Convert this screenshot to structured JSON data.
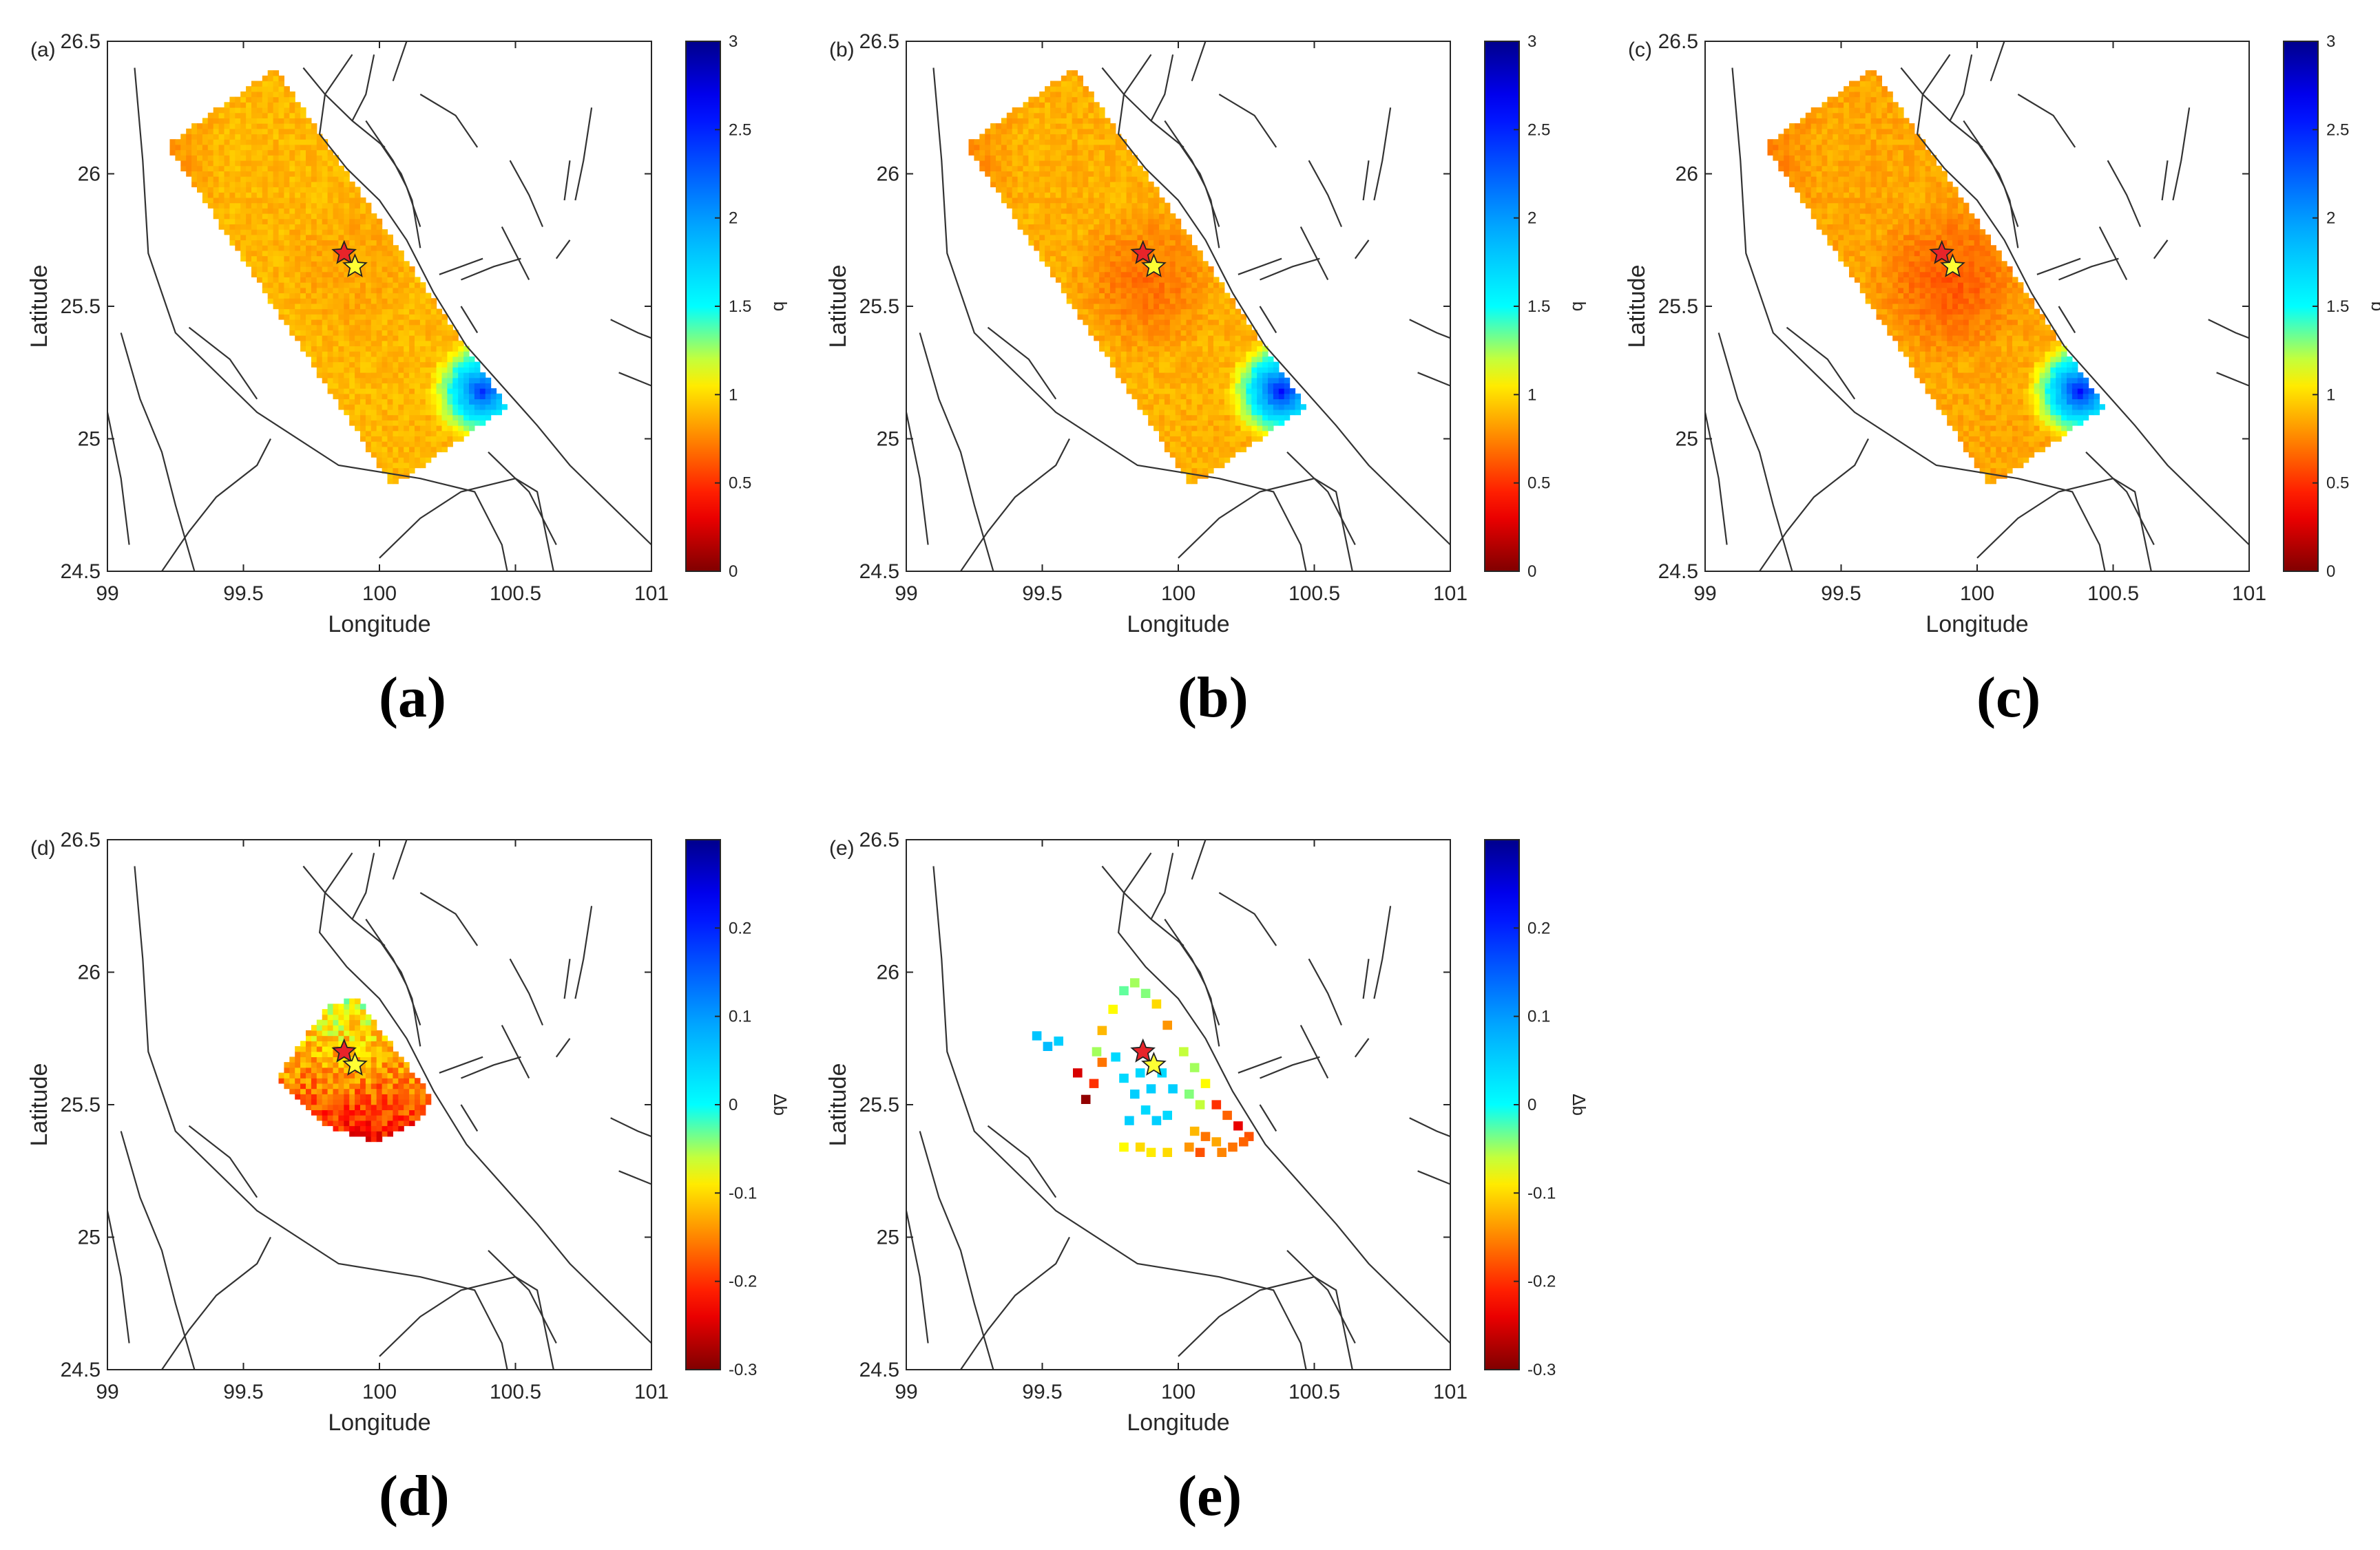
{
  "figure": {
    "captions": [
      "(a)",
      "(b)",
      "(c)",
      "(d)",
      "(e)"
    ]
  },
  "chart_data": [
    {
      "type": "heatmap",
      "panel_label": "(a)",
      "xlabel": "Longitude",
      "ylabel": "Latitude",
      "xlim": [
        99,
        101
      ],
      "ylim": [
        24.5,
        26.5
      ],
      "xticks": [
        "99",
        "99.5",
        "100",
        "100.5",
        "101"
      ],
      "yticks": [
        "24.5",
        "25",
        "25.5",
        "26",
        "26.5"
      ],
      "colorbar": {
        "label": "b",
        "range": [
          0,
          3
        ],
        "ticks": [
          "0",
          "0.5",
          "1",
          "1.5",
          "2",
          "2.5",
          "3"
        ]
      },
      "grid": false,
      "region_corners": [
        [
          99.22,
          26.11
        ],
        [
          99.62,
          26.4
        ],
        [
          100.47,
          25.12
        ],
        [
          100.05,
          24.82
        ]
      ],
      "field": {
        "base": 0.9,
        "low": {
          "center": [
            99.88,
            25.65
          ],
          "radius": 0.28,
          "value": 0.82
        },
        "high": {
          "center": [
            100.38,
            25.18
          ],
          "radius": 0.22,
          "value": 2.45
        }
      },
      "events": [
        {
          "name": "red-star",
          "lon": 99.87,
          "lat": 25.7,
          "color": "#e8242a"
        },
        {
          "name": "yellow-star",
          "lon": 99.91,
          "lat": 25.65,
          "color": "#ffff33"
        }
      ]
    },
    {
      "type": "heatmap",
      "panel_label": "(b)",
      "xlabel": "Longitude",
      "ylabel": "Latitude",
      "xlim": [
        99,
        101
      ],
      "ylim": [
        24.5,
        26.5
      ],
      "xticks": [
        "99",
        "99.5",
        "100",
        "100.5",
        "101"
      ],
      "yticks": [
        "24.5",
        "25",
        "25.5",
        "26",
        "26.5"
      ],
      "colorbar": {
        "label": "b",
        "range": [
          0,
          3
        ],
        "ticks": [
          "0",
          "0.5",
          "1",
          "1.5",
          "2",
          "2.5",
          "3"
        ]
      },
      "grid": false,
      "region_corners": [
        [
          99.22,
          26.11
        ],
        [
          99.62,
          26.4
        ],
        [
          100.47,
          25.12
        ],
        [
          100.05,
          24.82
        ]
      ],
      "field": {
        "base": 0.88,
        "low": {
          "center": [
            99.88,
            25.6
          ],
          "radius": 0.3,
          "value": 0.65
        },
        "high": {
          "center": [
            100.38,
            25.18
          ],
          "radius": 0.22,
          "value": 2.6
        }
      },
      "events": [
        {
          "name": "red-star",
          "lon": 99.87,
          "lat": 25.7,
          "color": "#e8242a"
        },
        {
          "name": "yellow-star",
          "lon": 99.91,
          "lat": 25.65,
          "color": "#ffff33"
        }
      ]
    },
    {
      "type": "heatmap",
      "panel_label": "(c)",
      "xlabel": "Longitude",
      "ylabel": "Latitude",
      "xlim": [
        99,
        101
      ],
      "ylim": [
        24.5,
        26.5
      ],
      "xticks": [
        "99",
        "99.5",
        "100",
        "100.5",
        "101"
      ],
      "yticks": [
        "24.5",
        "25",
        "25.5",
        "26",
        "26.5"
      ],
      "colorbar": {
        "label": "b",
        "range": [
          0,
          3
        ],
        "ticks": [
          "0",
          "0.5",
          "1",
          "1.5",
          "2",
          "2.5",
          "3"
        ]
      },
      "grid": false,
      "region_corners": [
        [
          99.22,
          26.11
        ],
        [
          99.62,
          26.4
        ],
        [
          100.47,
          25.12
        ],
        [
          100.05,
          24.82
        ]
      ],
      "field": {
        "base": 0.85,
        "low": {
          "center": [
            99.9,
            25.6
          ],
          "radius": 0.32,
          "value": 0.58
        },
        "high": {
          "center": [
            100.38,
            25.18
          ],
          "radius": 0.22,
          "value": 2.6
        }
      },
      "events": [
        {
          "name": "red-star",
          "lon": 99.87,
          "lat": 25.7,
          "color": "#e8242a"
        },
        {
          "name": "yellow-star",
          "lon": 99.91,
          "lat": 25.65,
          "color": "#ffff33"
        }
      ]
    },
    {
      "type": "heatmap",
      "panel_label": "(d)",
      "xlabel": "Longitude",
      "ylabel": "Latitude",
      "xlim": [
        99,
        101
      ],
      "ylim": [
        24.5,
        26.5
      ],
      "xticks": [
        "99",
        "99.5",
        "100",
        "100.5",
        "101"
      ],
      "yticks": [
        "24.5",
        "25",
        "25.5",
        "26",
        "26.5"
      ],
      "colorbar": {
        "label": "Δb",
        "range": [
          -0.3,
          0.3
        ],
        "ticks": [
          "-0.3",
          "-0.2",
          "-0.1",
          "0",
          "0.1",
          "0.2"
        ]
      },
      "grid": false,
      "region_polygon": [
        [
          99.72,
          25.75
        ],
        [
          99.82,
          25.88
        ],
        [
          99.92,
          25.9
        ],
        [
          100.05,
          25.72
        ],
        [
          100.2,
          25.52
        ],
        [
          100.12,
          25.42
        ],
        [
          99.98,
          25.36
        ],
        [
          99.8,
          25.42
        ],
        [
          99.62,
          25.6
        ]
      ],
      "field": {
        "top_value": -0.06,
        "bottom_value": -0.22
      },
      "events": [
        {
          "name": "red-star",
          "lon": 99.87,
          "lat": 25.7,
          "color": "#e8242a"
        },
        {
          "name": "yellow-star",
          "lon": 99.91,
          "lat": 25.65,
          "color": "#ffff33"
        }
      ]
    },
    {
      "type": "heatmap",
      "panel_label": "(e)",
      "xlabel": "Longitude",
      "ylabel": "Latitude",
      "xlim": [
        99,
        101
      ],
      "ylim": [
        24.5,
        26.5
      ],
      "xticks": [
        "99",
        "99.5",
        "100",
        "100.5",
        "101"
      ],
      "yticks": [
        "24.5",
        "25",
        "25.5",
        "26",
        "26.5"
      ],
      "colorbar": {
        "label": "Δb",
        "range": [
          -0.3,
          0.3
        ],
        "ticks": [
          "-0.3",
          "-0.2",
          "-0.1",
          "0",
          "0.1",
          "0.2"
        ]
      },
      "grid": false,
      "cells": [
        {
          "lon": 99.48,
          "lat": 25.76,
          "v": 0.06
        },
        {
          "lon": 99.52,
          "lat": 25.72,
          "v": 0.07
        },
        {
          "lon": 99.56,
          "lat": 25.74,
          "v": 0.05
        },
        {
          "lon": 99.63,
          "lat": 25.62,
          "v": -0.25
        },
        {
          "lon": 99.66,
          "lat": 25.52,
          "v": -0.29
        },
        {
          "lon": 99.69,
          "lat": 25.58,
          "v": -0.2
        },
        {
          "lon": 99.72,
          "lat": 25.78,
          "v": -0.12
        },
        {
          "lon": 99.76,
          "lat": 25.86,
          "v": -0.08
        },
        {
          "lon": 99.8,
          "lat": 25.93,
          "v": -0.03
        },
        {
          "lon": 99.84,
          "lat": 25.96,
          "v": -0.05
        },
        {
          "lon": 99.88,
          "lat": 25.92,
          "v": -0.04
        },
        {
          "lon": 99.92,
          "lat": 25.88,
          "v": -0.1
        },
        {
          "lon": 99.96,
          "lat": 25.8,
          "v": -0.14
        },
        {
          "lon": 99.72,
          "lat": 25.66,
          "v": -0.16
        },
        {
          "lon": 99.7,
          "lat": 25.7,
          "v": -0.05
        },
        {
          "lon": 99.77,
          "lat": 25.68,
          "v": 0.04
        },
        {
          "lon": 99.8,
          "lat": 25.6,
          "v": 0.04
        },
        {
          "lon": 99.84,
          "lat": 25.54,
          "v": 0.05
        },
        {
          "lon": 99.88,
          "lat": 25.48,
          "v": 0.04
        },
        {
          "lon": 99.92,
          "lat": 25.44,
          "v": 0.05
        },
        {
          "lon": 99.96,
          "lat": 25.46,
          "v": 0.04
        },
        {
          "lon": 99.82,
          "lat": 25.44,
          "v": 0.05
        },
        {
          "lon": 99.86,
          "lat": 25.62,
          "v": 0.04
        },
        {
          "lon": 99.9,
          "lat": 25.56,
          "v": 0.05
        },
        {
          "lon": 99.94,
          "lat": 25.62,
          "v": 0.04
        },
        {
          "lon": 99.98,
          "lat": 25.56,
          "v": 0.05
        },
        {
          "lon": 99.8,
          "lat": 25.34,
          "v": -0.08
        },
        {
          "lon": 99.86,
          "lat": 25.34,
          "v": -0.1
        },
        {
          "lon": 99.9,
          "lat": 25.32,
          "v": -0.09
        },
        {
          "lon": 99.96,
          "lat": 25.32,
          "v": -0.1
        },
        {
          "lon": 100.02,
          "lat": 25.7,
          "v": -0.06
        },
        {
          "lon": 100.06,
          "lat": 25.64,
          "v": -0.05
        },
        {
          "lon": 100.1,
          "lat": 25.58,
          "v": -0.08
        },
        {
          "lon": 100.04,
          "lat": 25.54,
          "v": -0.04
        },
        {
          "lon": 100.08,
          "lat": 25.5,
          "v": -0.06
        },
        {
          "lon": 100.14,
          "lat": 25.5,
          "v": -0.2
        },
        {
          "lon": 100.18,
          "lat": 25.46,
          "v": -0.17
        },
        {
          "lon": 100.22,
          "lat": 25.42,
          "v": -0.24
        },
        {
          "lon": 100.26,
          "lat": 25.38,
          "v": -0.18
        },
        {
          "lon": 100.06,
          "lat": 25.4,
          "v": -0.12
        },
        {
          "lon": 100.1,
          "lat": 25.38,
          "v": -0.16
        },
        {
          "lon": 100.14,
          "lat": 25.36,
          "v": -0.13
        },
        {
          "lon": 100.04,
          "lat": 25.34,
          "v": -0.14
        },
        {
          "lon": 100.08,
          "lat": 25.32,
          "v": -0.18
        },
        {
          "lon": 100.16,
          "lat": 25.32,
          "v": -0.15
        },
        {
          "lon": 100.2,
          "lat": 25.34,
          "v": -0.16
        },
        {
          "lon": 100.24,
          "lat": 25.36,
          "v": -0.17
        }
      ],
      "events": [
        {
          "name": "red-star",
          "lon": 99.87,
          "lat": 25.7,
          "color": "#e8242a"
        },
        {
          "name": "yellow-star",
          "lon": 99.91,
          "lat": 25.65,
          "color": "#ffff33"
        }
      ]
    }
  ]
}
